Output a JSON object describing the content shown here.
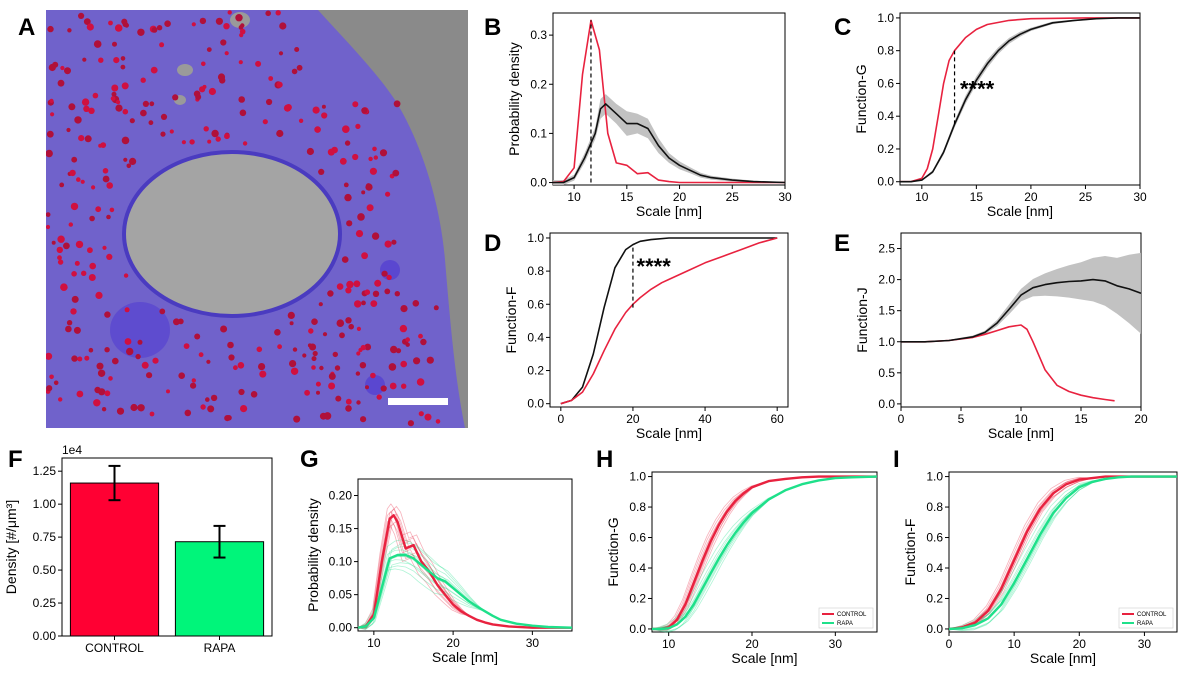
{
  "panel_letters": [
    "A",
    "B",
    "C",
    "D",
    "E",
    "F",
    "G",
    "H",
    "I"
  ],
  "colors": {
    "control": "#e8223f",
    "rapa": "#1ee08a",
    "black": "#111111",
    "band": "#bbbbbb",
    "cell": "#6b5bd6",
    "bar_control": "#ff0033",
    "bar_rapa": "#00f57a"
  },
  "chart_data": [
    {
      "id": "A",
      "type": "image",
      "image_name": "tomogram-segmentation-render",
      "content": "cell-render"
    },
    {
      "id": "B",
      "type": "line",
      "xlabel": "Scale [nm]",
      "ylabel": "Probability density",
      "xlim": [
        8,
        30
      ],
      "ylim": [
        -0.005,
        0.345
      ],
      "xticks": [
        10,
        15,
        20,
        25,
        30
      ],
      "yticks": [
        0.0,
        0.1,
        0.2,
        0.3
      ],
      "ytick_labels": [
        "0.0",
        "0.1",
        "0.2",
        "0.3"
      ],
      "vline": {
        "x": 11.6,
        "y0": 0,
        "y1": 0.33
      },
      "series": [
        {
          "name": "red",
          "color": "#e8223f",
          "x": [
            8,
            9,
            10,
            10.8,
            11.6,
            12.4,
            13.2,
            14,
            15,
            16,
            17,
            18,
            19,
            20,
            22,
            25,
            30
          ],
          "y": [
            0,
            0.002,
            0.03,
            0.22,
            0.33,
            0.27,
            0.1,
            0.04,
            0.035,
            0.018,
            0.02,
            0.005,
            0.002,
            0,
            0,
            0,
            0
          ]
        },
        {
          "name": "black",
          "color": "#111111",
          "x": [
            8,
            9,
            10,
            11,
            12,
            12.5,
            13,
            14,
            15,
            16,
            17,
            18,
            19,
            20,
            21,
            22,
            23,
            25,
            27,
            30
          ],
          "y": [
            0,
            0,
            0.01,
            0.05,
            0.1,
            0.15,
            0.16,
            0.14,
            0.12,
            0.12,
            0.11,
            0.075,
            0.05,
            0.035,
            0.025,
            0.015,
            0.01,
            0.005,
            0.002,
            0
          ],
          "band": [
            0.005,
            0.005,
            0.006,
            0.01,
            0.012,
            0.02,
            0.02,
            0.02,
            0.025,
            0.02,
            0.02,
            0.015,
            0.01,
            0.008,
            0.006,
            0.005,
            0.004,
            0.003,
            0.002,
            0.001
          ]
        }
      ]
    },
    {
      "id": "C",
      "type": "line",
      "xlabel": "Scale [nm]",
      "ylabel": "Function-G",
      "xlim": [
        8,
        30
      ],
      "ylim": [
        -0.02,
        1.03
      ],
      "xticks": [
        10,
        15,
        20,
        25,
        30
      ],
      "yticks": [
        0.0,
        0.2,
        0.4,
        0.6,
        0.8,
        1.0
      ],
      "ytick_labels": [
        "0.0",
        "0.2",
        "0.4",
        "0.6",
        "0.8",
        "1.0"
      ],
      "vline": {
        "x": 13,
        "y0": 0.35,
        "y1": 0.8
      },
      "annotation": "****",
      "annotation_pos": [
        13.5,
        0.57
      ],
      "series": [
        {
          "name": "red",
          "color": "#e8223f",
          "x": [
            8,
            9,
            10,
            10.5,
            11,
            11.5,
            12,
            12.5,
            13,
            14,
            15,
            16,
            18,
            20,
            25,
            30
          ],
          "y": [
            0,
            0,
            0.02,
            0.08,
            0.2,
            0.4,
            0.6,
            0.74,
            0.8,
            0.88,
            0.93,
            0.96,
            0.985,
            0.995,
            1,
            1
          ]
        },
        {
          "name": "black",
          "color": "#111111",
          "x": [
            8,
            9,
            10,
            11,
            12,
            13,
            14,
            15,
            16,
            17,
            18,
            19,
            20,
            22,
            24,
            26,
            28,
            30
          ],
          "y": [
            0,
            0,
            0.01,
            0.06,
            0.18,
            0.35,
            0.5,
            0.62,
            0.72,
            0.8,
            0.86,
            0.9,
            0.93,
            0.97,
            0.985,
            0.995,
            1,
            1
          ],
          "band": [
            0,
            0,
            0.005,
            0.01,
            0.015,
            0.02,
            0.025,
            0.025,
            0.025,
            0.02,
            0.018,
            0.015,
            0.01,
            0.008,
            0.005,
            0.003,
            0.002,
            0
          ]
        }
      ]
    },
    {
      "id": "D",
      "type": "line",
      "xlabel": "Scale [nm]",
      "ylabel": "Function-F",
      "xlim": [
        -3,
        63
      ],
      "ylim": [
        -0.02,
        1.03
      ],
      "xticks": [
        0,
        20,
        40,
        60
      ],
      "yticks": [
        0.0,
        0.2,
        0.4,
        0.6,
        0.8,
        1.0
      ],
      "ytick_labels": [
        "0.0",
        "0.2",
        "0.4",
        "0.6",
        "0.8",
        "1.0"
      ],
      "vline": {
        "x": 20,
        "y0": 0.58,
        "y1": 0.96
      },
      "annotation": "****",
      "annotation_pos": [
        21,
        0.83
      ],
      "series": [
        {
          "name": "black",
          "color": "#111111",
          "x": [
            0,
            3,
            6,
            9,
            12,
            15,
            18,
            20,
            22,
            25,
            30,
            40,
            50,
            60
          ],
          "y": [
            0,
            0.02,
            0.1,
            0.3,
            0.58,
            0.82,
            0.93,
            0.96,
            0.98,
            0.99,
            1,
            1,
            1,
            1
          ]
        },
        {
          "name": "red",
          "color": "#e8223f",
          "x": [
            0,
            3,
            6,
            9,
            12,
            15,
            18,
            20,
            22,
            25,
            28,
            30,
            35,
            40,
            45,
            50,
            55,
            60
          ],
          "y": [
            0,
            0.02,
            0.07,
            0.18,
            0.32,
            0.45,
            0.55,
            0.6,
            0.64,
            0.69,
            0.73,
            0.75,
            0.8,
            0.85,
            0.89,
            0.93,
            0.97,
            1
          ]
        }
      ]
    },
    {
      "id": "E",
      "type": "line",
      "xlabel": "Scale [nm]",
      "ylabel": "Function-J",
      "xlim": [
        0,
        20
      ],
      "ylim": [
        -0.05,
        2.75
      ],
      "xticks": [
        0,
        5,
        10,
        15,
        20
      ],
      "yticks": [
        0.0,
        0.5,
        1.0,
        1.5,
        2.0,
        2.5
      ],
      "ytick_labels": [
        "0.0",
        "0.5",
        "1.0",
        "1.5",
        "2.0",
        "2.5"
      ],
      "series": [
        {
          "name": "red",
          "color": "#e8223f",
          "x": [
            0,
            2,
            4,
            6,
            7,
            8,
            9,
            10,
            10.5,
            11,
            12,
            13,
            14,
            15,
            16,
            17,
            17.8
          ],
          "y": [
            1,
            1,
            1.02,
            1.07,
            1.12,
            1.18,
            1.24,
            1.27,
            1.2,
            1.0,
            0.55,
            0.3,
            0.2,
            0.14,
            0.1,
            0.07,
            0.05
          ]
        },
        {
          "name": "black",
          "color": "#111111",
          "x": [
            0,
            2,
            4,
            6,
            7,
            8,
            9,
            10,
            11,
            12,
            13,
            14,
            15,
            16,
            17,
            18,
            19,
            20
          ],
          "y": [
            1,
            1,
            1.02,
            1.08,
            1.15,
            1.3,
            1.52,
            1.75,
            1.87,
            1.92,
            1.95,
            1.97,
            1.98,
            2.0,
            1.98,
            1.9,
            1.85,
            1.78
          ],
          "band": [
            0,
            0,
            0.01,
            0.02,
            0.03,
            0.05,
            0.08,
            0.1,
            0.14,
            0.18,
            0.22,
            0.26,
            0.3,
            0.35,
            0.4,
            0.45,
            0.55,
            0.65
          ]
        }
      ]
    },
    {
      "id": "F",
      "type": "bar",
      "ylabel": "Density [#/μm³]",
      "scale_label": "1e4",
      "ylim": [
        0,
        13500
      ],
      "categories": [
        "CONTROL",
        "RAPA"
      ],
      "values": [
        11600,
        7150
      ],
      "errors": [
        1300,
        1200
      ],
      "yticks": [
        0,
        2500,
        5000,
        7500,
        10000,
        12500
      ],
      "ytick_labels": [
        "0.00",
        "0.25",
        "0.50",
        "0.75",
        "1.00",
        "1.25"
      ],
      "bar_colors": [
        "#ff0033",
        "#00f57a"
      ]
    },
    {
      "id": "G",
      "type": "line",
      "xlabel": "Scale [nm]",
      "ylabel": "Probability density",
      "xlim": [
        8,
        35
      ],
      "ylim": [
        -0.005,
        0.225
      ],
      "xticks": [
        10,
        20,
        30
      ],
      "yticks": [
        0.0,
        0.05,
        0.1,
        0.15,
        0.2
      ],
      "ytick_labels": [
        "0.00",
        "0.05",
        "0.10",
        "0.15",
        "0.20"
      ],
      "series": [
        {
          "name": "CONTROL",
          "color": "#e8223f",
          "x": [
            8,
            9,
            10,
            11,
            12,
            12.5,
            13,
            14,
            15,
            16,
            17,
            18,
            19,
            20,
            21,
            22,
            23,
            24,
            25,
            27,
            30,
            35
          ],
          "y": [
            0,
            0.002,
            0.02,
            0.1,
            0.165,
            0.17,
            0.16,
            0.12,
            0.125,
            0.1,
            0.085,
            0.065,
            0.05,
            0.035,
            0.025,
            0.018,
            0.012,
            0.008,
            0.005,
            0.002,
            0,
            0
          ],
          "spread": 0.02
        },
        {
          "name": "RAPA",
          "color": "#1ee08a",
          "x": [
            8,
            9,
            10,
            11,
            12,
            13,
            14,
            15,
            16,
            17,
            18,
            19,
            20,
            21,
            22,
            23,
            24,
            25,
            26,
            28,
            30,
            32,
            35
          ],
          "y": [
            0,
            0.002,
            0.015,
            0.06,
            0.105,
            0.11,
            0.11,
            0.105,
            0.095,
            0.085,
            0.075,
            0.07,
            0.06,
            0.05,
            0.04,
            0.032,
            0.025,
            0.018,
            0.012,
            0.006,
            0.003,
            0.001,
            0
          ],
          "spread": 0.025
        }
      ]
    },
    {
      "id": "H",
      "type": "line",
      "xlabel": "Scale [nm]",
      "ylabel": "Function-G",
      "xlim": [
        8,
        35
      ],
      "ylim": [
        -0.02,
        1.03
      ],
      "xticks": [
        10,
        20,
        30
      ],
      "yticks": [
        0.0,
        0.2,
        0.4,
        0.6,
        0.8,
        1.0
      ],
      "ytick_labels": [
        "0.0",
        "0.2",
        "0.4",
        "0.6",
        "0.8",
        "1.0"
      ],
      "legend": [
        "CONTROL",
        "RAPA"
      ],
      "series": [
        {
          "name": "CONTROL",
          "color": "#e8223f",
          "x": [
            8,
            9,
            10,
            11,
            12,
            13,
            14,
            15,
            16,
            17,
            18,
            19,
            20,
            22,
            24,
            26,
            28,
            30,
            35
          ],
          "y": [
            0,
            0,
            0.01,
            0.06,
            0.16,
            0.3,
            0.44,
            0.57,
            0.68,
            0.77,
            0.84,
            0.89,
            0.93,
            0.97,
            0.985,
            0.995,
            1,
            1,
            1
          ],
          "spread": 0.04
        },
        {
          "name": "RAPA",
          "color": "#1ee08a",
          "x": [
            8,
            9,
            10,
            11,
            12,
            13,
            14,
            15,
            16,
            17,
            18,
            19,
            20,
            22,
            24,
            26,
            28,
            30,
            32,
            35
          ],
          "y": [
            0,
            0,
            0.005,
            0.03,
            0.08,
            0.16,
            0.26,
            0.36,
            0.46,
            0.55,
            0.63,
            0.7,
            0.76,
            0.85,
            0.91,
            0.95,
            0.975,
            0.99,
            0.995,
            1
          ],
          "spread": 0.06
        }
      ]
    },
    {
      "id": "I",
      "type": "line",
      "xlabel": "Scale [nm]",
      "ylabel": "Function-F",
      "xlim": [
        0,
        35
      ],
      "ylim": [
        -0.02,
        1.03
      ],
      "xticks": [
        0,
        10,
        20,
        30
      ],
      "yticks": [
        0.0,
        0.2,
        0.4,
        0.6,
        0.8,
        1.0
      ],
      "ytick_labels": [
        "0.0",
        "0.2",
        "0.4",
        "0.6",
        "0.8",
        "1.0"
      ],
      "legend": [
        "CONTROL",
        "RAPA"
      ],
      "series": [
        {
          "name": "CONTROL",
          "color": "#e8223f",
          "x": [
            0,
            2,
            4,
            6,
            8,
            10,
            12,
            14,
            16,
            18,
            20,
            22,
            24,
            26,
            28,
            30,
            35
          ],
          "y": [
            0,
            0.01,
            0.04,
            0.12,
            0.26,
            0.45,
            0.64,
            0.79,
            0.89,
            0.95,
            0.98,
            0.99,
            1,
            1,
            1,
            1,
            1
          ],
          "spread": 0.04
        },
        {
          "name": "RAPA",
          "color": "#1ee08a",
          "x": [
            0,
            2,
            4,
            6,
            8,
            10,
            12,
            14,
            16,
            18,
            20,
            22,
            24,
            26,
            28,
            30,
            35
          ],
          "y": [
            0,
            0.005,
            0.025,
            0.07,
            0.16,
            0.3,
            0.46,
            0.62,
            0.76,
            0.86,
            0.93,
            0.965,
            0.985,
            0.995,
            1,
            1,
            1
          ],
          "spread": 0.06
        }
      ]
    }
  ]
}
